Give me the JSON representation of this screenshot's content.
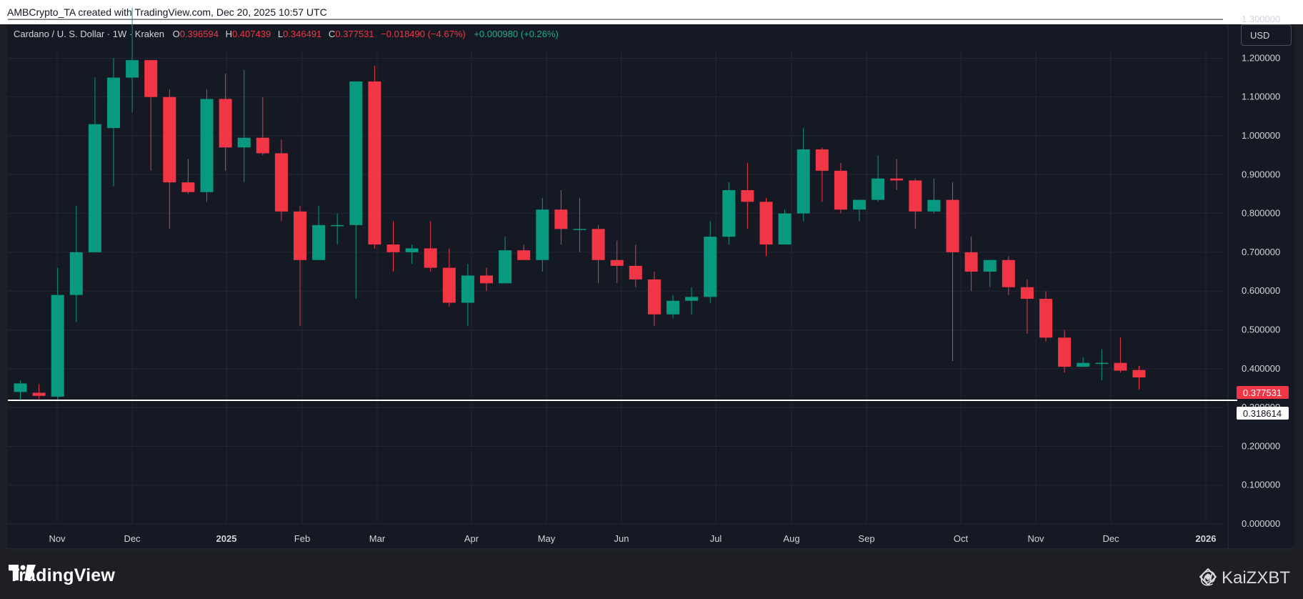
{
  "watermark": "AMBCrypto_TA created with TradingView.com, Dec 20, 2025 10:57 UTC",
  "legend": {
    "symbol": "Cardano / U. S. Dollar · 1W · Kraken",
    "o_label": "O",
    "o_value": "0.396594",
    "h_label": "H",
    "h_value": "0.407439",
    "l_label": "L",
    "l_value": "0.346491",
    "c_label": "C",
    "c_value": "0.377531",
    "change": "−0.018490 (−4.67%)",
    "extra": "+0.000980 (+0.26%)"
  },
  "currency_button": "USD",
  "price_labels": {
    "last": "0.377531",
    "line": "0.318614"
  },
  "footer": {
    "brand": "TradingView",
    "handle": "@ KaiZXBT"
  },
  "colors": {
    "up": "#089981",
    "down": "#f23645",
    "bg": "#151924",
    "grid": "#232733",
    "text": "#d1d4dc",
    "line": "#ffffff"
  },
  "chart_data": {
    "type": "candlestick",
    "title": "Cardano / U. S. Dollar · 1W · Kraken",
    "y_ticks": [
      "0.000000",
      "0.100000",
      "0.200000",
      "0.300000",
      "0.400000",
      "0.500000",
      "0.600000",
      "0.700000",
      "0.800000",
      "0.900000",
      "1.000000",
      "1.100000",
      "1.200000",
      "1.300000"
    ],
    "ylim": [
      0,
      1.34
    ],
    "x_ticks": [
      "Nov",
      "Dec",
      "2025",
      "Feb",
      "Mar",
      "Apr",
      "May",
      "Jun",
      "Jul",
      "Aug",
      "Sep",
      "Oct",
      "Nov",
      "Dec",
      "2026"
    ],
    "horizontal_line": 0.318614,
    "candles": [
      {
        "o": 0.34,
        "h": 0.37,
        "l": 0.32,
        "c": 0.362
      },
      {
        "o": 0.338,
        "h": 0.36,
        "l": 0.322,
        "c": 0.33
      },
      {
        "o": 0.328,
        "h": 0.66,
        "l": 0.32,
        "c": 0.59
      },
      {
        "o": 0.59,
        "h": 0.82,
        "l": 0.52,
        "c": 0.7
      },
      {
        "o": 0.7,
        "h": 1.15,
        "l": 0.7,
        "c": 1.03
      },
      {
        "o": 1.02,
        "h": 1.2,
        "l": 0.87,
        "c": 1.15
      },
      {
        "o": 1.15,
        "h": 1.33,
        "l": 1.06,
        "c": 1.195
      },
      {
        "o": 1.195,
        "h": 1.19,
        "l": 0.91,
        "c": 1.1
      },
      {
        "o": 1.1,
        "h": 1.12,
        "l": 0.76,
        "c": 0.88
      },
      {
        "o": 0.88,
        "h": 0.94,
        "l": 0.85,
        "c": 0.855
      },
      {
        "o": 0.855,
        "h": 1.12,
        "l": 0.83,
        "c": 1.095
      },
      {
        "o": 1.095,
        "h": 1.16,
        "l": 0.91,
        "c": 0.97
      },
      {
        "o": 0.97,
        "h": 1.17,
        "l": 0.88,
        "c": 0.995
      },
      {
        "o": 0.995,
        "h": 1.1,
        "l": 0.95,
        "c": 0.955
      },
      {
        "o": 0.955,
        "h": 0.99,
        "l": 0.78,
        "c": 0.805
      },
      {
        "o": 0.805,
        "h": 0.82,
        "l": 0.51,
        "c": 0.68
      },
      {
        "o": 0.68,
        "h": 0.82,
        "l": 0.68,
        "c": 0.77
      },
      {
        "o": 0.77,
        "h": 0.8,
        "l": 0.72,
        "c": 0.77
      },
      {
        "o": 0.77,
        "h": 1.14,
        "l": 0.58,
        "c": 1.14
      },
      {
        "o": 1.14,
        "h": 1.18,
        "l": 0.71,
        "c": 0.72
      },
      {
        "o": 0.72,
        "h": 0.78,
        "l": 0.65,
        "c": 0.7
      },
      {
        "o": 0.7,
        "h": 0.72,
        "l": 0.67,
        "c": 0.71
      },
      {
        "o": 0.71,
        "h": 0.78,
        "l": 0.65,
        "c": 0.66
      },
      {
        "o": 0.66,
        "h": 0.71,
        "l": 0.56,
        "c": 0.57
      },
      {
        "o": 0.57,
        "h": 0.67,
        "l": 0.51,
        "c": 0.64
      },
      {
        "o": 0.64,
        "h": 0.66,
        "l": 0.6,
        "c": 0.62
      },
      {
        "o": 0.62,
        "h": 0.74,
        "l": 0.62,
        "c": 0.705
      },
      {
        "o": 0.705,
        "h": 0.72,
        "l": 0.68,
        "c": 0.68
      },
      {
        "o": 0.68,
        "h": 0.84,
        "l": 0.65,
        "c": 0.81
      },
      {
        "o": 0.81,
        "h": 0.86,
        "l": 0.72,
        "c": 0.76
      },
      {
        "o": 0.76,
        "h": 0.84,
        "l": 0.7,
        "c": 0.76
      },
      {
        "o": 0.76,
        "h": 0.77,
        "l": 0.62,
        "c": 0.68
      },
      {
        "o": 0.68,
        "h": 0.73,
        "l": 0.62,
        "c": 0.665
      },
      {
        "o": 0.665,
        "h": 0.72,
        "l": 0.61,
        "c": 0.63
      },
      {
        "o": 0.63,
        "h": 0.65,
        "l": 0.51,
        "c": 0.54
      },
      {
        "o": 0.54,
        "h": 0.59,
        "l": 0.53,
        "c": 0.575
      },
      {
        "o": 0.575,
        "h": 0.61,
        "l": 0.54,
        "c": 0.585
      },
      {
        "o": 0.585,
        "h": 0.78,
        "l": 0.57,
        "c": 0.74
      },
      {
        "o": 0.74,
        "h": 0.88,
        "l": 0.72,
        "c": 0.86
      },
      {
        "o": 0.86,
        "h": 0.93,
        "l": 0.76,
        "c": 0.83
      },
      {
        "o": 0.83,
        "h": 0.84,
        "l": 0.69,
        "c": 0.72
      },
      {
        "o": 0.72,
        "h": 0.81,
        "l": 0.72,
        "c": 0.8
      },
      {
        "o": 0.8,
        "h": 1.02,
        "l": 0.78,
        "c": 0.965
      },
      {
        "o": 0.965,
        "h": 0.97,
        "l": 0.83,
        "c": 0.91
      },
      {
        "o": 0.91,
        "h": 0.93,
        "l": 0.8,
        "c": 0.81
      },
      {
        "o": 0.81,
        "h": 0.83,
        "l": 0.78,
        "c": 0.835
      },
      {
        "o": 0.835,
        "h": 0.95,
        "l": 0.83,
        "c": 0.89
      },
      {
        "o": 0.89,
        "h": 0.94,
        "l": 0.86,
        "c": 0.885
      },
      {
        "o": 0.885,
        "h": 0.89,
        "l": 0.76,
        "c": 0.805
      },
      {
        "o": 0.805,
        "h": 0.89,
        "l": 0.8,
        "c": 0.835
      },
      {
        "o": 0.835,
        "h": 0.88,
        "l": 0.42,
        "c": 0.7
      },
      {
        "o": 0.7,
        "h": 0.74,
        "l": 0.6,
        "c": 0.65
      },
      {
        "o": 0.65,
        "h": 0.68,
        "l": 0.61,
        "c": 0.68
      },
      {
        "o": 0.68,
        "h": 0.69,
        "l": 0.59,
        "c": 0.61
      },
      {
        "o": 0.61,
        "h": 0.63,
        "l": 0.49,
        "c": 0.58
      },
      {
        "o": 0.58,
        "h": 0.6,
        "l": 0.47,
        "c": 0.48
      },
      {
        "o": 0.48,
        "h": 0.5,
        "l": 0.39,
        "c": 0.405
      },
      {
        "o": 0.405,
        "h": 0.43,
        "l": 0.405,
        "c": 0.415
      },
      {
        "o": 0.415,
        "h": 0.45,
        "l": 0.37,
        "c": 0.415
      },
      {
        "o": 0.415,
        "h": 0.48,
        "l": 0.39,
        "c": 0.395
      },
      {
        "o": 0.396594,
        "h": 0.407439,
        "l": 0.346491,
        "c": 0.377531
      }
    ]
  }
}
